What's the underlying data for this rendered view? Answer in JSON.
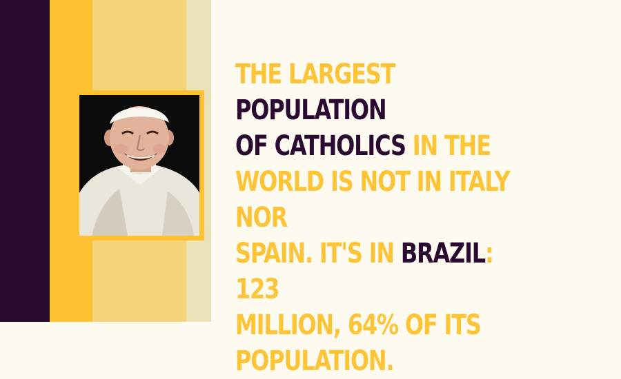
{
  "colors": {
    "dark_purple": "#2a0a30",
    "yellow": "#fdc132",
    "light_yellow": "#f6d47a",
    "pale": "#ece2b8",
    "background": "#fdfbf0",
    "text_accent": "#fcc436",
    "text_dark": "#2a0a30"
  },
  "photo": {
    "subject": "smiling-man-white-zucchetto"
  },
  "headline": {
    "l1_a": "THE LARGEST ",
    "l1_b": "POPULATION",
    "l2_a": "OF CATHOLICS",
    "l2_b": " IN THE",
    "l3": "WORLD IS NOT IN ITALY NOR",
    "l4_a": "SPAIN. IT'S IN ",
    "l4_b": "BRAZIL",
    "l4_c": ": 123",
    "l5": "MILLION, 64% OF ITS",
    "l6": "POPULATION."
  }
}
